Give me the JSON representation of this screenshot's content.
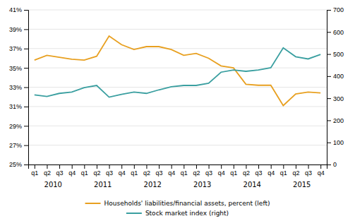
{
  "chart_data": {
    "type": "line",
    "categories": [
      "q1",
      "q2",
      "q3",
      "q4",
      "q1",
      "q2",
      "q3",
      "q4",
      "q1",
      "q2",
      "q3",
      "q4",
      "q1",
      "q2",
      "q3",
      "q4",
      "q1",
      "q2",
      "q3",
      "q4",
      "q1",
      "q2",
      "q3",
      "q4"
    ],
    "annotations": [
      "2010",
      "2011",
      "2012",
      "2013",
      "2014",
      "2015"
    ],
    "series": [
      {
        "name": "Households' liabilities/financial assets, percent (left)",
        "color": "#E8A020",
        "values": [
          35.8,
          36.3,
          36.1,
          35.9,
          35.8,
          36.2,
          38.3,
          37.4,
          36.9,
          37.2,
          37.2,
          36.9,
          36.3,
          36.5,
          36.0,
          35.2,
          35.0,
          33.3,
          33.2,
          33.2,
          31.1,
          32.3,
          32.5,
          32.4
        ]
      },
      {
        "name": "Stock market index (right)",
        "color": "#3A9FA0",
        "axis": "y2",
        "values": [
          315,
          308,
          322,
          328,
          348,
          358,
          305,
          318,
          328,
          322,
          338,
          352,
          358,
          358,
          368,
          418,
          428,
          422,
          428,
          438,
          528,
          488,
          478,
          498
        ]
      }
    ],
    "ylim": [
      25,
      41
    ],
    "yticks": [
      {
        "value": 25,
        "label": "25%"
      },
      {
        "value": 27,
        "label": "27%"
      },
      {
        "value": 29,
        "label": "29%"
      },
      {
        "value": 31,
        "label": "31%"
      },
      {
        "value": 33,
        "label": "33%"
      },
      {
        "value": 35,
        "label": "35%"
      },
      {
        "value": 37,
        "label": "37%"
      },
      {
        "value": 39,
        "label": "39%"
      },
      {
        "value": 41,
        "label": "41%"
      }
    ],
    "y2lim": [
      0,
      700
    ],
    "y2ticks": [
      0,
      100,
      200,
      300,
      400,
      500,
      600,
      700
    ],
    "grid": true,
    "legend": "bottom"
  }
}
